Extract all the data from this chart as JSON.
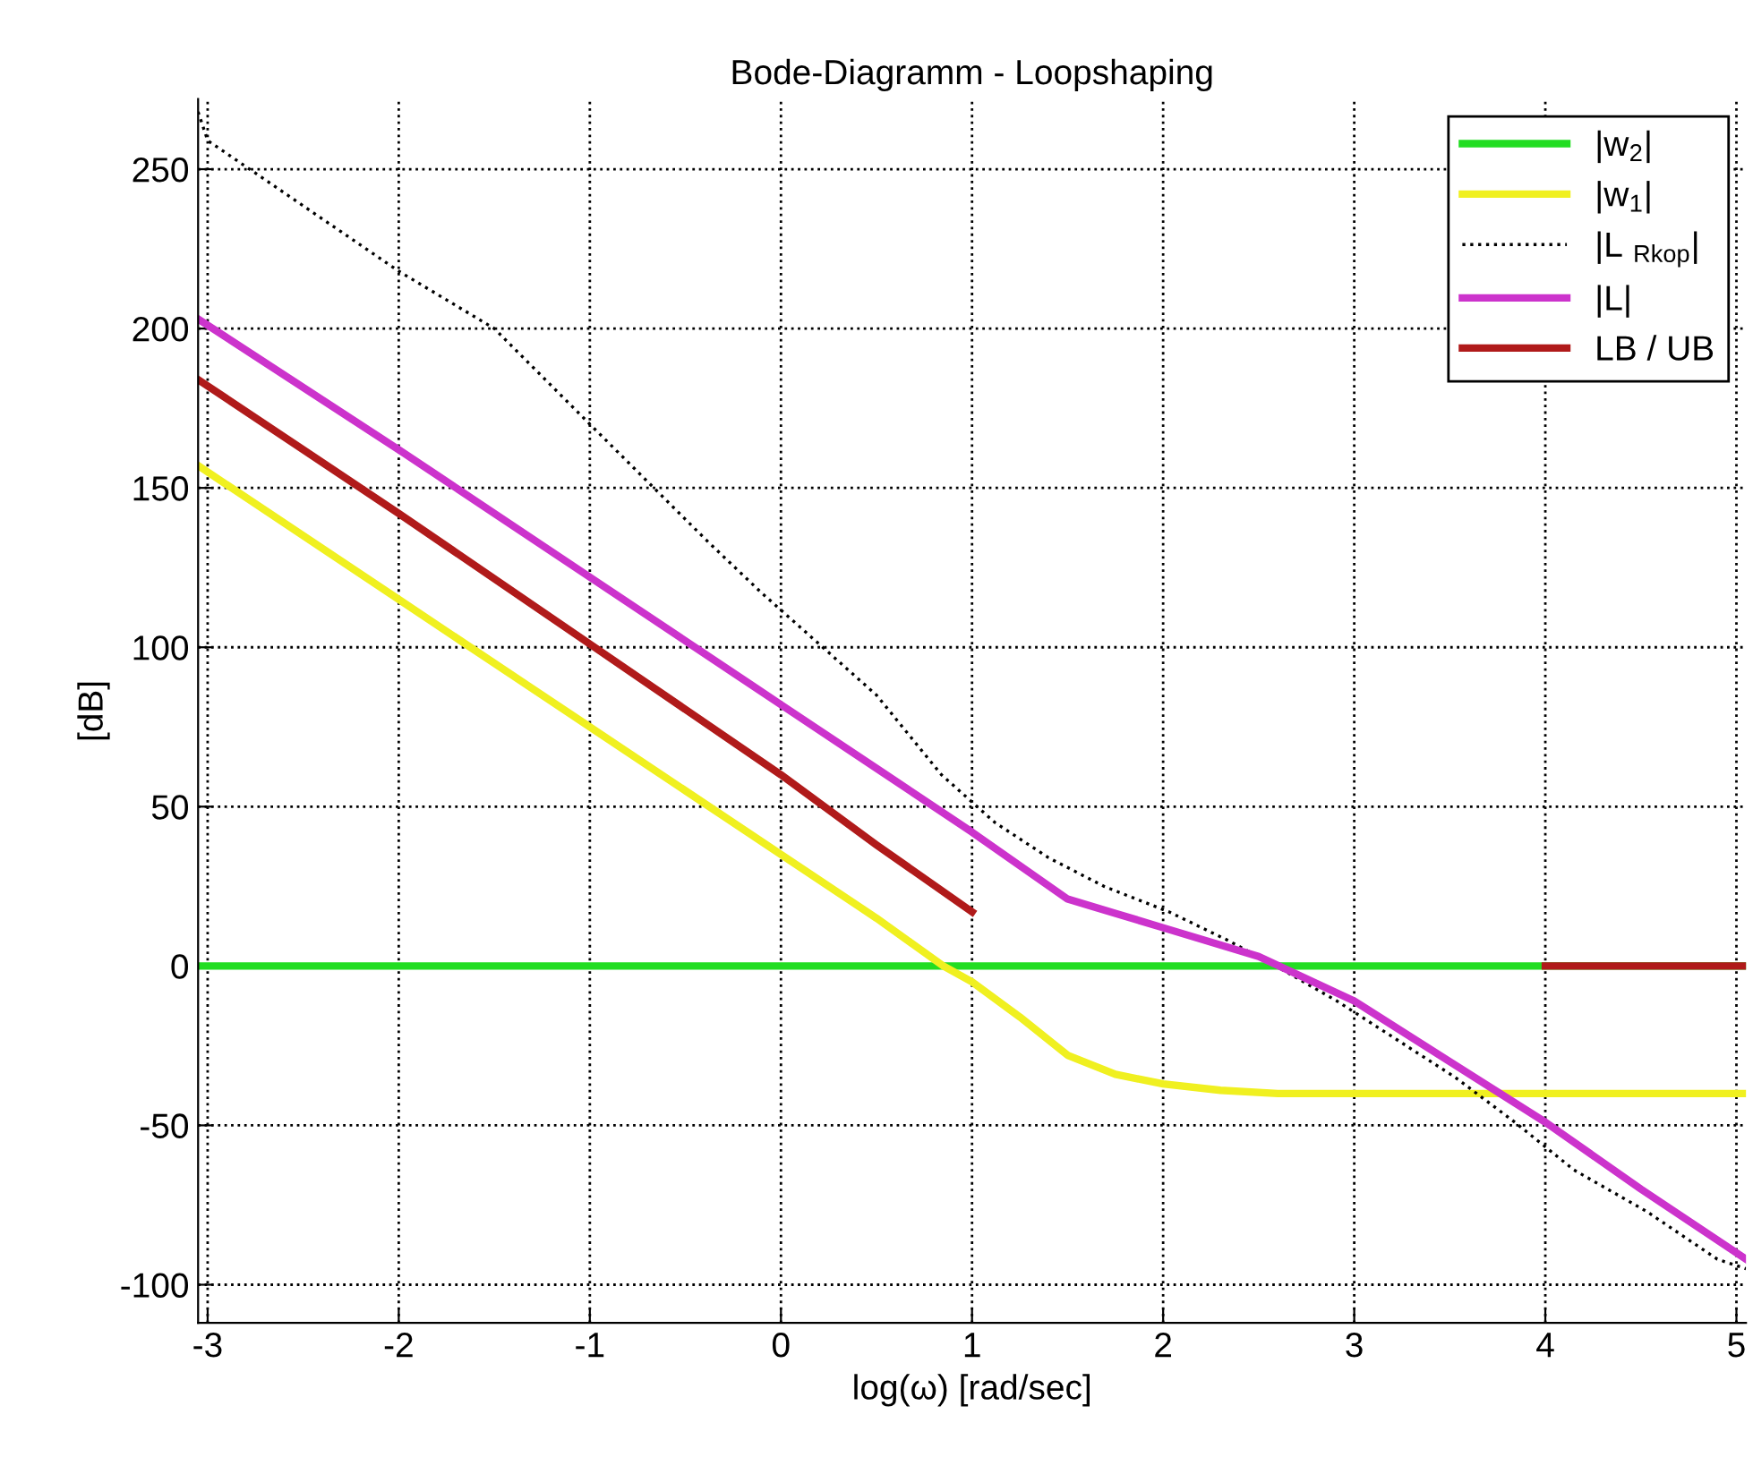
{
  "chart_data": {
    "type": "line",
    "title": "Bode-Diagramm - Loopshaping",
    "xlabel": "log(ω) [rad/sec]",
    "ylabel": "[dB]",
    "xlim": [
      -3.05,
      5.05
    ],
    "ylim": [
      -112,
      272
    ],
    "xticks": [
      -3,
      -2,
      -1,
      0,
      1,
      2,
      3,
      4,
      5
    ],
    "yticks": [
      -100,
      -50,
      0,
      50,
      100,
      150,
      200,
      250
    ],
    "grid": true,
    "legend": "top right",
    "series": [
      {
        "name": "|w$_{2}$|",
        "color": "#22dd22",
        "line_style": "solid",
        "x": [
          -3.05,
          5.05
        ],
        "values": [
          0,
          0
        ]
      },
      {
        "name": "|w$_{1}$|",
        "color": "#f0f020",
        "line_style": "solid",
        "x": [
          -3.05,
          -2,
          -1,
          0,
          0.5,
          0.85,
          1,
          1.25,
          1.5,
          1.75,
          2,
          2.3,
          2.6,
          3,
          4,
          5.05
        ],
        "values": [
          157,
          115,
          75,
          35,
          15,
          0,
          -5,
          -16,
          -28,
          -34,
          -37,
          -39,
          -40,
          -40,
          -40,
          -40
        ]
      },
      {
        "name": "|L $_{Rkop}$|",
        "color": "#000000",
        "line_style": "dotted",
        "x": [
          -3.05,
          -3,
          -2.78,
          -2,
          -1.5,
          -1,
          -0.38,
          -0.1,
          0.5,
          0.84,
          1.12,
          1.4,
          1.69,
          2.03,
          2.34,
          2.59,
          2.91,
          3.22,
          3.53,
          3.84,
          4.15,
          4.53,
          4.9,
          5.05
        ],
        "values": [
          268,
          259,
          250,
          218,
          200,
          170,
          133,
          117,
          85,
          60,
          45,
          34,
          25,
          17,
          8,
          0,
          -11,
          -23,
          -35,
          -49,
          -64,
          -77,
          -92,
          -95
        ]
      },
      {
        "name": "|L|",
        "color": "#cc33cc",
        "line_style": "solid",
        "x": [
          -3.05,
          -2,
          -1,
          0,
          0.5,
          1,
          1.5,
          2,
          2.5,
          3,
          3.5,
          4,
          4.5,
          5.05
        ],
        "values": [
          203,
          162,
          122,
          82,
          62,
          42,
          21,
          12,
          3,
          -11,
          -30,
          -49,
          -70,
          -92
        ]
      },
      {
        "name": "LB / UB",
        "color": "#b01a1a",
        "line_style": "solid",
        "x": [
          -3.05,
          -2,
          -1,
          0,
          0.5,
          1,
          null,
          4,
          5.05
        ],
        "values": [
          184,
          142,
          101,
          60,
          38,
          17,
          null,
          0,
          0
        ]
      }
    ]
  }
}
